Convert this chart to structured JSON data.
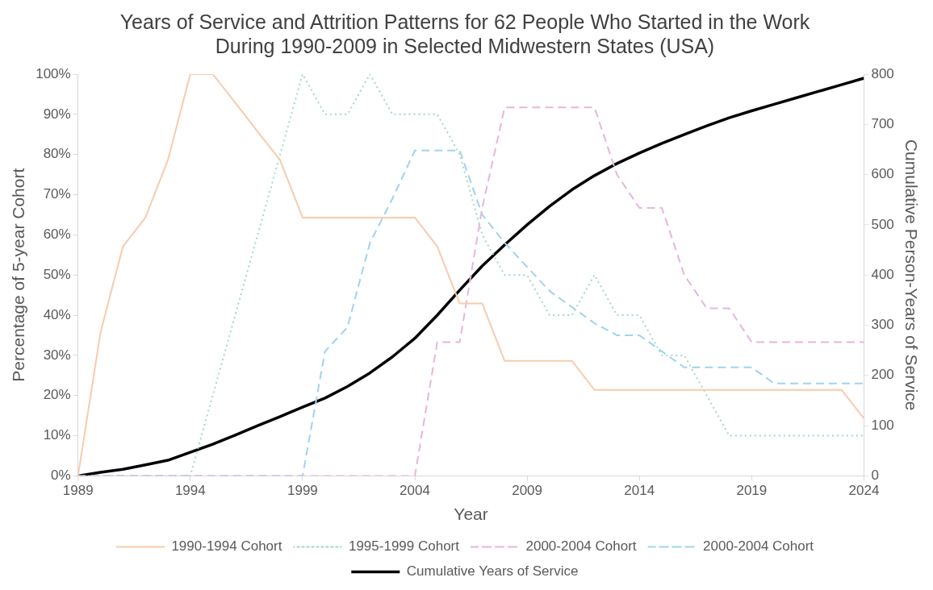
{
  "chart_data": {
    "type": "line",
    "title": "Years of Service and Attrition Patterns for 62 People Who Started in the Work During 1990-2009 in Selected Midwestern States (USA)",
    "xlabel": "Year",
    "ylabel": "Percentage of 5-year Cohort",
    "y2label": "Cumulative Person-Years of Service",
    "x": [
      1989,
      1990,
      1991,
      1992,
      1993,
      1994,
      1995,
      1996,
      1997,
      1998,
      1999,
      2000,
      2001,
      2002,
      2003,
      2004,
      2005,
      2006,
      2007,
      2008,
      2009,
      2010,
      2011,
      2012,
      2013,
      2014,
      2015,
      2016,
      2017,
      2018,
      2019,
      2020,
      2021,
      2022,
      2023,
      2024
    ],
    "xlim": [
      1989,
      2024
    ],
    "xticks": [
      1989,
      1994,
      1999,
      2004,
      2009,
      2014,
      2019,
      2024
    ],
    "ylim": [
      0,
      100
    ],
    "yticks": [
      {
        "value": 0,
        "label": "0%"
      },
      {
        "value": 10,
        "label": "10%"
      },
      {
        "value": 20,
        "label": "20%"
      },
      {
        "value": 30,
        "label": "30%"
      },
      {
        "value": 40,
        "label": "40%"
      },
      {
        "value": 50,
        "label": "50%"
      },
      {
        "value": 60,
        "label": "60%"
      },
      {
        "value": 70,
        "label": "70%"
      },
      {
        "value": 80,
        "label": "80%"
      },
      {
        "value": 90,
        "label": "90%"
      },
      {
        "value": 100,
        "label": "100%"
      }
    ],
    "y2lim": [
      0,
      800
    ],
    "y2ticks": [
      0,
      100,
      200,
      300,
      400,
      500,
      600,
      700,
      800
    ],
    "grid": false,
    "legend": "bottom",
    "marker": "none",
    "series": [
      {
        "name": "1990-1994 Cohort",
        "color": "#f8cbad",
        "line_style": "solid",
        "values": [
          0,
          35.7,
          57.1,
          64.3,
          78.6,
          100,
          100,
          92.9,
          85.7,
          78.6,
          64.3,
          64.3,
          64.3,
          64.3,
          64.3,
          64.3,
          57.1,
          42.9,
          42.9,
          28.6,
          28.6,
          28.6,
          28.6,
          21.4,
          21.4,
          21.4,
          21.4,
          21.4,
          21.4,
          21.4,
          21.4,
          21.4,
          21.4,
          21.4,
          21.4,
          14.3
        ]
      },
      {
        "name": "1995-1999 Cohort",
        "color": "#a3d9c4",
        "line_style": "dotted",
        "values": [
          0,
          0,
          0,
          0,
          0,
          0,
          20,
          40,
          60,
          80,
          100,
          90,
          90,
          100,
          90,
          90,
          90,
          80,
          60,
          50,
          50,
          40,
          40,
          50,
          40,
          40,
          30,
          30,
          20,
          10,
          10,
          10,
          10,
          10,
          10,
          10
        ]
      },
      {
        "name": "2000-2004 Cohort",
        "color": "#e6b6da",
        "line_style": "dashed",
        "values": [
          0,
          0,
          0,
          0,
          0,
          0,
          0,
          0,
          0,
          0,
          0,
          0,
          0,
          0,
          0,
          0,
          33.3,
          33.3,
          66.7,
          91.7,
          91.7,
          91.7,
          91.7,
          91.7,
          75,
          66.7,
          66.7,
          50,
          41.7,
          41.7,
          33.3,
          33.3,
          33.3,
          33.3,
          33.3,
          33.3
        ]
      },
      {
        "name": "2000-2004 Cohort",
        "color": "#9fd3ef",
        "line_style": "dashed",
        "values": [
          0,
          0,
          0,
          0,
          0,
          0,
          0,
          0,
          0,
          0,
          0,
          31,
          37,
          58,
          69,
          81,
          81,
          81,
          65,
          58,
          52,
          46,
          42,
          38,
          35,
          35,
          31,
          27,
          27,
          27,
          27,
          23,
          23,
          23,
          23,
          23
        ]
      },
      {
        "name": "Cumulative Years of Service",
        "color": "#000000",
        "line_style": "solid",
        "axis": "y2",
        "values": [
          0,
          7,
          13,
          22,
          31,
          47,
          63,
          81,
          100,
          118,
          137,
          155,
          178,
          205,
          237,
          274,
          320,
          370,
          418,
          460,
          500,
          537,
          570,
          598,
          622,
          643,
          662,
          680,
          697,
          713,
          727,
          740,
          753,
          766,
          779,
          792
        ]
      }
    ]
  }
}
